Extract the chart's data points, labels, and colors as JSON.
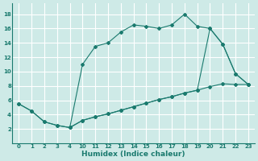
{
  "xlabel": "Humidex (Indice chaleur)",
  "bg_color": "#ceeae7",
  "grid_color": "#ffffff",
  "line_color": "#1a7a6e",
  "xtick_labels": [
    "0",
    "1",
    "2",
    "3",
    "4",
    "10",
    "11",
    "12",
    "13",
    "14",
    "15",
    "16",
    "17",
    "18",
    "19",
    "20",
    "21",
    "22",
    "23"
  ],
  "ytick_labels": [
    "2",
    "4",
    "6",
    "8",
    "10",
    "12",
    "14",
    "16",
    "18"
  ],
  "ytick_vals": [
    2,
    4,
    6,
    8,
    10,
    12,
    14,
    16,
    18
  ],
  "ylim": [
    0,
    19.5
  ],
  "line1_xi": [
    0,
    1,
    2,
    3,
    4,
    5,
    6,
    7,
    8,
    9,
    10,
    11,
    12,
    13,
    14,
    15,
    16,
    17,
    18
  ],
  "line1_y": [
    5.5,
    4.5,
    3.0,
    2.5,
    2.2,
    11.0,
    13.5,
    14.0,
    15.5,
    16.5,
    16.3,
    16.0,
    16.5,
    18.0,
    16.3,
    16.0,
    13.8,
    9.7,
    8.2
  ],
  "line2_xi": [
    0,
    1,
    2,
    3,
    4,
    5,
    6,
    7,
    8,
    9,
    10,
    11,
    12,
    13,
    14,
    15,
    16,
    17,
    18
  ],
  "line2_y": [
    5.5,
    4.5,
    3.0,
    2.5,
    2.2,
    3.2,
    3.7,
    4.1,
    4.6,
    5.1,
    5.6,
    6.1,
    6.5,
    7.0,
    7.4,
    7.9,
    8.3,
    8.2,
    8.2
  ],
  "line3_xi": [
    4,
    5,
    6,
    7,
    8,
    9,
    10,
    11,
    12,
    13,
    14,
    15,
    16,
    17,
    18
  ],
  "line3_y": [
    2.2,
    3.2,
    3.7,
    4.1,
    4.6,
    5.1,
    5.6,
    6.1,
    6.5,
    7.0,
    7.4,
    16.0,
    13.8,
    9.7,
    8.2
  ]
}
